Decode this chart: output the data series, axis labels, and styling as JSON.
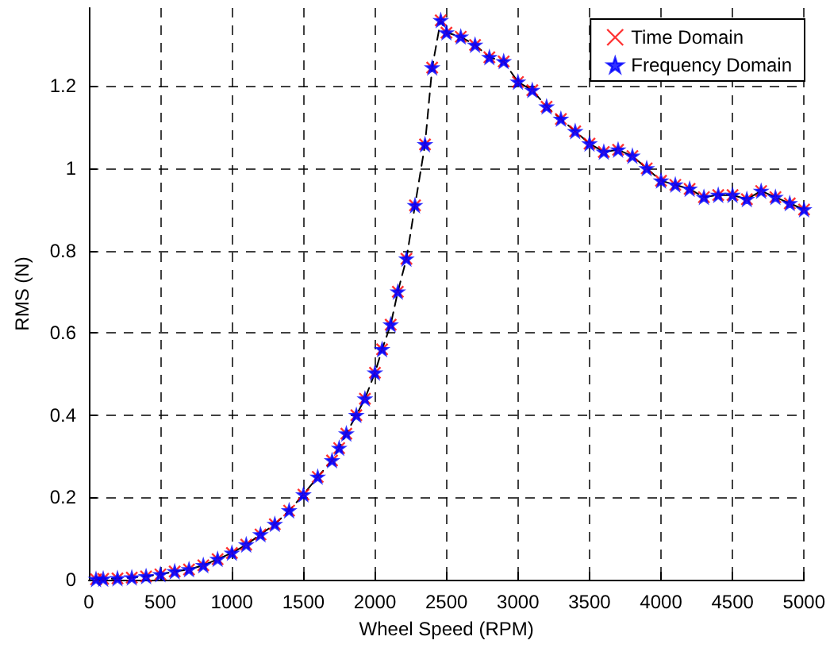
{
  "chart_data": {
    "type": "scatter",
    "xlabel": "Wheel Speed (RPM)",
    "ylabel": "RMS (N)",
    "x": [
      50,
      100,
      200,
      300,
      400,
      500,
      600,
      700,
      800,
      900,
      1000,
      1100,
      1200,
      1300,
      1400,
      1500,
      1600,
      1700,
      1750,
      1800,
      1870,
      1930,
      2000,
      2050,
      2110,
      2160,
      2220,
      2280,
      2350,
      2400,
      2460,
      2500,
      2600,
      2700,
      2800,
      2900,
      3000,
      3100,
      3200,
      3300,
      3400,
      3500,
      3600,
      3700,
      3800,
      3900,
      4000,
      4100,
      4200,
      4300,
      4400,
      4500,
      4600,
      4700,
      4800,
      4900,
      5000
    ],
    "series": [
      {
        "type": "line",
        "line_style": "dashed",
        "marker": "none",
        "color": "#000000",
        "values": [
          0.001,
          0.002,
          0.003,
          0.005,
          0.008,
          0.013,
          0.02,
          0.025,
          0.035,
          0.05,
          0.065,
          0.085,
          0.11,
          0.135,
          0.168,
          0.207,
          0.25,
          0.29,
          0.32,
          0.355,
          0.4,
          0.44,
          0.503,
          0.56,
          0.62,
          0.7,
          0.78,
          0.91,
          1.058,
          1.245,
          1.36,
          1.33,
          1.32,
          1.3,
          1.27,
          1.26,
          1.21,
          1.19,
          1.15,
          1.12,
          1.09,
          1.06,
          1.04,
          1.045,
          1.03,
          1.0,
          0.97,
          0.96,
          0.95,
          0.93,
          0.935,
          0.935,
          0.925,
          0.945,
          0.93,
          0.915,
          0.9
        ]
      },
      {
        "name": "Time Domain",
        "marker": "cross",
        "color": "#ff0000",
        "values": [
          0.001,
          0.002,
          0.003,
          0.005,
          0.008,
          0.013,
          0.02,
          0.025,
          0.035,
          0.05,
          0.065,
          0.085,
          0.11,
          0.135,
          0.168,
          0.207,
          0.25,
          0.29,
          0.32,
          0.355,
          0.4,
          0.44,
          0.503,
          0.56,
          0.62,
          0.7,
          0.78,
          0.91,
          1.058,
          1.245,
          1.36,
          1.33,
          1.32,
          1.3,
          1.27,
          1.26,
          1.21,
          1.19,
          1.15,
          1.12,
          1.09,
          1.06,
          1.04,
          1.045,
          1.03,
          1.0,
          0.97,
          0.96,
          0.95,
          0.93,
          0.935,
          0.935,
          0.925,
          0.945,
          0.93,
          0.915,
          0.9
        ]
      },
      {
        "name": "Frequency Domain",
        "marker": "star",
        "color": "#0000ff",
        "values": [
          0.001,
          0.002,
          0.003,
          0.005,
          0.008,
          0.013,
          0.02,
          0.025,
          0.035,
          0.05,
          0.065,
          0.085,
          0.11,
          0.135,
          0.168,
          0.207,
          0.25,
          0.29,
          0.32,
          0.355,
          0.4,
          0.44,
          0.503,
          0.56,
          0.62,
          0.7,
          0.78,
          0.91,
          1.058,
          1.245,
          1.36,
          1.33,
          1.32,
          1.3,
          1.27,
          1.26,
          1.21,
          1.19,
          1.15,
          1.12,
          1.09,
          1.06,
          1.04,
          1.045,
          1.03,
          1.0,
          0.97,
          0.96,
          0.95,
          0.93,
          0.935,
          0.935,
          0.925,
          0.945,
          0.93,
          0.915,
          0.9
        ]
      }
    ],
    "xlim": [
      0,
      5000
    ],
    "xticks": [
      0,
      500,
      1000,
      1500,
      2000,
      2500,
      3000,
      3500,
      4000,
      4500,
      5000
    ],
    "ylim": [
      0,
      1.39
    ],
    "yticks": [
      0,
      0.2,
      0.4,
      0.6,
      0.8,
      1,
      1.2
    ],
    "grid": true,
    "legend": "top right"
  }
}
